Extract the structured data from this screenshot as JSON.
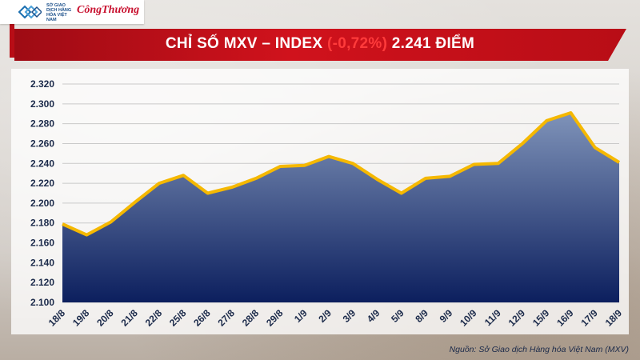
{
  "header": {
    "mxv_logo_text": "SỞ GIAO DỊCH HÀNG HÓA VIỆT NAM",
    "ct_logo_text": "CôngThương",
    "title_prefix": "CHỈ SỐ MXV – INDEX ",
    "title_change": "(-0,72%)",
    "title_suffix": " 2.241 ĐIỂM"
  },
  "source": "Nguồn: Sở Giao dịch Hàng hóa Việt Nam (MXV)",
  "chart_data": {
    "type": "area",
    "title": "CHỈ SỐ MXV – INDEX (-0,72%) 2.241 ĐIỂM",
    "categories": [
      "18/8",
      "19/8",
      "20/8",
      "21/8",
      "22/8",
      "25/8",
      "26/8",
      "27/8",
      "28/8",
      "29/8",
      "1/9",
      "2/9",
      "3/9",
      "4/9",
      "5/9",
      "8/9",
      "9/9",
      "10/9",
      "11/9",
      "12/9",
      "15/9",
      "16/9",
      "17/9",
      "18/9"
    ],
    "values": [
      2179,
      2168,
      2181,
      2201,
      2220,
      2228,
      2210,
      2216,
      2225,
      2237,
      2238,
      2247,
      2240,
      2224,
      2210,
      2225,
      2227,
      2239,
      2240,
      2260,
      2283,
      2291,
      2256,
      2241
    ],
    "ylim": [
      2100,
      2320
    ],
    "yticks": [
      2100,
      2120,
      2140,
      2160,
      2180,
      2200,
      2220,
      2240,
      2260,
      2280,
      2300,
      2320
    ],
    "ytick_labels": [
      "2.100",
      "2.120",
      "2.140",
      "2.160",
      "2.180",
      "2.200",
      "2.220",
      "2.240",
      "2.260",
      "2.280",
      "2.300",
      "2.320"
    ],
    "grid": true,
    "line_color": "#f5b800",
    "fill_top": "#7f93b9",
    "fill_bottom": "#0c1f5e"
  }
}
